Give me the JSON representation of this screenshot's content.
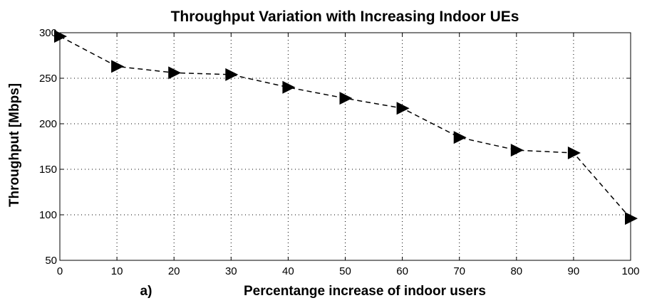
{
  "chart_data": {
    "type": "line",
    "title": "Throughput Variation with Increasing Indoor UEs",
    "xlabel": "Percentange increase of indoor users",
    "xlabel_prefix": "a)",
    "ylabel": "Throughput [Mbps]",
    "xlim": [
      0,
      100
    ],
    "ylim": [
      50,
      300
    ],
    "xticks": [
      0,
      10,
      20,
      30,
      40,
      50,
      60,
      70,
      80,
      90,
      100
    ],
    "yticks": [
      50,
      100,
      150,
      200,
      250,
      300
    ],
    "grid": true,
    "legend": "none",
    "series": [
      {
        "marker": "triangle-right",
        "line_style": "dashed",
        "color": "#000000",
        "x": [
          0,
          10,
          20,
          30,
          40,
          50,
          60,
          70,
          80,
          90,
          100
        ],
        "y": [
          296,
          263,
          256,
          254,
          240,
          228,
          217,
          185,
          171,
          168,
          96
        ]
      }
    ]
  }
}
